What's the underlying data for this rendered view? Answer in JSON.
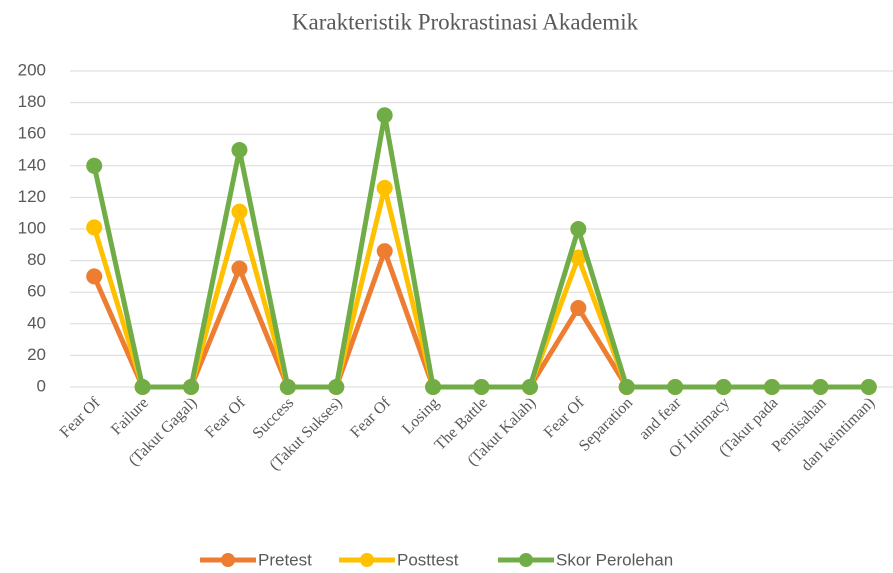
{
  "chart_data": {
    "type": "line",
    "title": "Karakteristik Prokrastinasi Akademik",
    "categories": [
      "Fear Of",
      "Failure",
      "(Takut Gagal)",
      "Fear  Of",
      "Success",
      "(Takut Sukses)",
      "Fear Of",
      "Losing",
      "The Battle",
      "(Takut Kalah)",
      "Fear Of",
      "Separation",
      "and fear",
      "Of Intimacy",
      "(Takut pada",
      "Pemisahan",
      "dan keintiman)"
    ],
    "series": [
      {
        "name": "Pretest",
        "color": "#ed7d31",
        "values": [
          70,
          0,
          0,
          75,
          0,
          0,
          86,
          0,
          0,
          0,
          50,
          0,
          0,
          0,
          0,
          0,
          0
        ]
      },
      {
        "name": "Posttest",
        "color": "#ffc000",
        "values": [
          101,
          0,
          0,
          111,
          0,
          0,
          126,
          0,
          0,
          0,
          82,
          0,
          0,
          0,
          0,
          0,
          0
        ]
      },
      {
        "name": "Skor Perolehan",
        "color": "#70ad47",
        "values": [
          140,
          0,
          0,
          150,
          0,
          0,
          172,
          0,
          0,
          0,
          100,
          0,
          0,
          0,
          0,
          0,
          0
        ]
      }
    ],
    "ylim": [
      0,
      200
    ],
    "yticks": [
      0,
      20,
      40,
      60,
      80,
      100,
      120,
      140,
      160,
      180,
      200
    ],
    "grid": true,
    "legend": "bottom"
  }
}
